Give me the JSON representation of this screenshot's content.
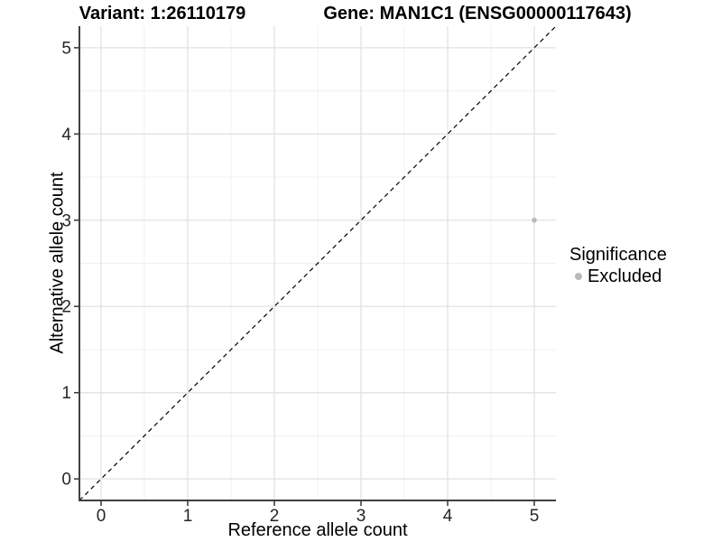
{
  "chart_data": {
    "type": "scatter",
    "titles": {
      "left": "Variant: 1:26110179",
      "right": "Gene: MAN1C1 (ENSG00000117643)"
    },
    "xlabel": "Reference allele count",
    "ylabel": "Alternative allele count",
    "xlim": [
      -0.25,
      5.25
    ],
    "ylim": [
      -0.25,
      5.25
    ],
    "xticks": [
      0,
      1,
      2,
      3,
      4,
      5
    ],
    "yticks": [
      0,
      1,
      2,
      3,
      4,
      5
    ],
    "x_minor": [
      0.5,
      1.5,
      2.5,
      3.5,
      4.5
    ],
    "y_minor": [
      0.5,
      1.5,
      2.5,
      3.5,
      4.5
    ],
    "grid": "major and minor gridlines on white panel",
    "points": [
      {
        "x": 5,
        "y": 3,
        "series": "Excluded"
      }
    ],
    "reference_line": {
      "type": "identity y=x",
      "style": "dashed"
    },
    "legend": {
      "title": "Significance",
      "position": "right",
      "entries": [
        {
          "label": "Excluded",
          "color": "#b9b9b9"
        }
      ]
    },
    "colors": {
      "background": "#ffffff",
      "point": "#b9b9b9",
      "grid_major": "#e2e2e2",
      "grid_minor": "#f0f0f0",
      "axis_line": "#404040",
      "tick_mark": "#333333",
      "tick_text": "#262626",
      "reference_line": "#000000"
    }
  }
}
